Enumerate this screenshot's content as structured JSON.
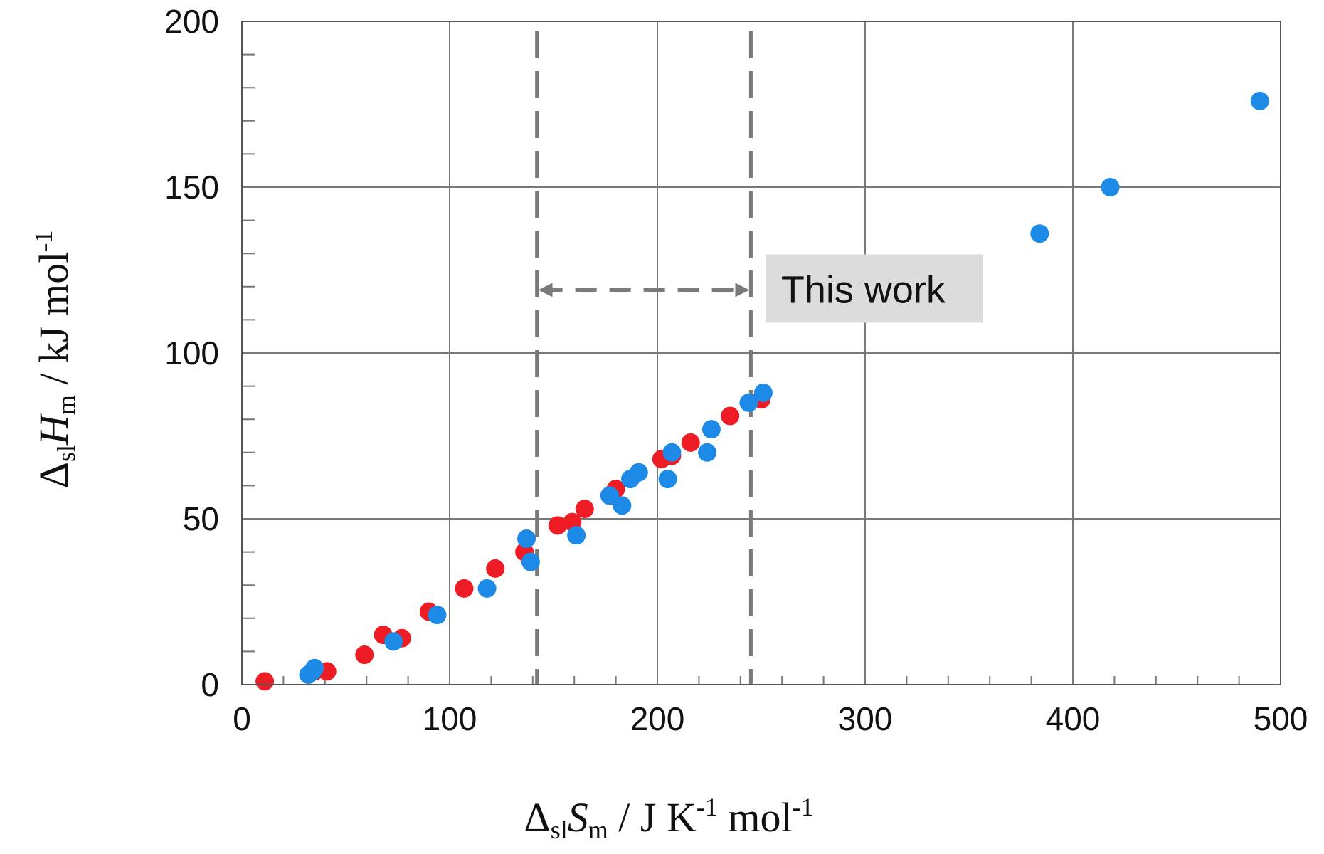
{
  "chart_data": {
    "type": "scatter",
    "title": "",
    "xlabel": {
      "delta": "Δ",
      "sub1": "sl",
      "sym": "S",
      "sub2": "m",
      "unit_a": " / J K",
      "sup1": "-1",
      "unit_b": " mol",
      "sup2": "-1"
    },
    "ylabel": {
      "delta": "Δ",
      "sub1": "sl",
      "sym": "H",
      "sub2": "m",
      "unit_a": " / kJ mol",
      "sup1": "-1"
    },
    "xlim": [
      0,
      500
    ],
    "ylim": [
      0,
      200
    ],
    "x_ticks": [
      "0",
      "100",
      "200",
      "300",
      "400",
      "500"
    ],
    "y_ticks": [
      "0",
      "50",
      "100",
      "150",
      "200"
    ],
    "grid": true,
    "colors": {
      "red": "#ee1c25",
      "blue": "#1c8ae6",
      "grid": "#7a7a7a",
      "dashed": "#7a7a7a",
      "annotation_bg": "#dcdcdc"
    },
    "series": [
      {
        "color": "red",
        "points": [
          [
            11,
            1
          ],
          [
            35,
            4
          ],
          [
            41,
            4
          ],
          [
            59,
            9
          ],
          [
            68,
            15
          ],
          [
            77,
            14
          ],
          [
            90,
            22
          ],
          [
            107,
            29
          ],
          [
            122,
            35
          ],
          [
            136,
            40
          ],
          [
            152,
            48
          ],
          [
            159,
            49
          ],
          [
            165,
            53
          ],
          [
            178,
            57
          ],
          [
            180,
            59
          ],
          [
            202,
            68
          ],
          [
            207,
            69
          ],
          [
            216,
            73
          ],
          [
            235,
            81
          ],
          [
            250,
            86
          ]
        ]
      },
      {
        "color": "blue",
        "points": [
          [
            32,
            3
          ],
          [
            34,
            4
          ],
          [
            35,
            5
          ],
          [
            73,
            13
          ],
          [
            94,
            21
          ],
          [
            118,
            29
          ],
          [
            137,
            44
          ],
          [
            139,
            37
          ],
          [
            161,
            45
          ],
          [
            177,
            57
          ],
          [
            183,
            54
          ],
          [
            187,
            62
          ],
          [
            191,
            64
          ],
          [
            205,
            62
          ],
          [
            207,
            70
          ],
          [
            224,
            70
          ],
          [
            226,
            77
          ],
          [
            244,
            85
          ],
          [
            251,
            88
          ],
          [
            384,
            136
          ],
          [
            418,
            150
          ],
          [
            490,
            176
          ]
        ]
      }
    ],
    "dashed_vertical_lines": [
      142,
      245
    ],
    "arrow": {
      "x_from": 142,
      "x_to": 245,
      "y": 119
    },
    "annotation": {
      "text": "This work",
      "x": 252,
      "y": 119
    }
  }
}
